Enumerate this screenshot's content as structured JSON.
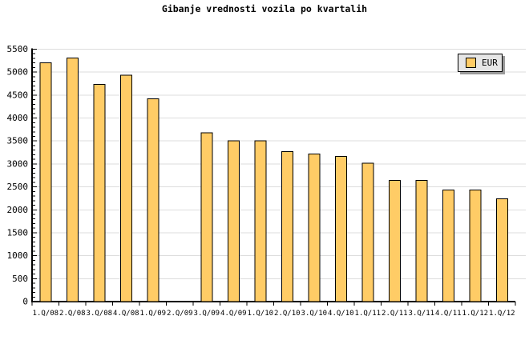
{
  "chart_data": {
    "type": "bar",
    "title": "Gibanje vrednosti vozila po kvartalih",
    "xlabel": "",
    "ylabel": "",
    "categories": [
      "1.Q/08",
      "2.Q/08",
      "3.Q/08",
      "4.Q/08",
      "1.Q/09",
      "2.Q/09",
      "3.Q/09",
      "4.Q/09",
      "1.Q/10",
      "2.Q/10",
      "3.Q/10",
      "4.Q/10",
      "1.Q/11",
      "2.Q/11",
      "3.Q/11",
      "4.Q/11",
      "1.Q/12",
      "1.Q/12"
    ],
    "series": [
      {
        "name": "EUR",
        "values": [
          5200,
          5310,
          4730,
          4930,
          4420,
          null,
          3680,
          3500,
          3500,
          3270,
          3220,
          3160,
          3020,
          2640,
          2640,
          2430,
          2430,
          2240
        ]
      }
    ],
    "ylim": [
      0,
      5500
    ],
    "ytick_step": 500,
    "ytick_minor_step": 100,
    "ytick_labels": [
      "0",
      "500",
      "1000",
      "1500",
      "2000",
      "2500",
      "3000",
      "3500",
      "4000",
      "4500",
      "5000",
      "5500"
    ],
    "grid": "horizontal-major",
    "legend_position": "top-right",
    "colors": {
      "bar_fill": "#FFCC66",
      "bar_stroke": "#000000",
      "grid": "#DDDDDD",
      "axis": "#000000",
      "text": "#000000",
      "legend_bg": "#E6E6E6",
      "legend_border": "#000000",
      "legend_shadow": "#999999",
      "background": "#FFFFFF"
    }
  }
}
